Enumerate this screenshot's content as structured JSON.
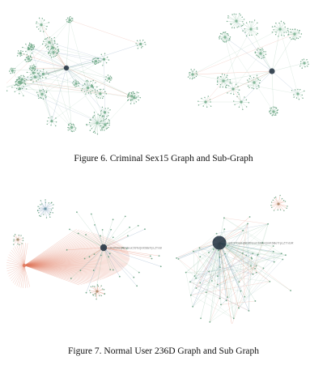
{
  "figures": [
    {
      "caption": "Figure 6.   Criminal Sex15 Graph and Sub-Graph",
      "panels": [
        "criminal-graph",
        "criminal-sub-graph"
      ],
      "node_labels": []
    },
    {
      "caption": "Figure 7.   Normal User 236D Graph and Sub Graph",
      "panels": [
        "normal-user-graph",
        "normal-user-sub-graph"
      ],
      "node_labels": [
        "14Ct7DmHjNbRNxuCb9TeQmK6BeTrpLZTnGR",
        "14Ct7DmHjNbRNxuCb9TeQmK6BeTrpLZTnGR"
      ]
    }
  ],
  "colors": {
    "green_edge": "#8fbfa2",
    "green_node": "#5f9c7a",
    "red_edge": "#e07a5f",
    "blue_edge": "#6c8fb4",
    "hub": "#1f2e3d"
  }
}
